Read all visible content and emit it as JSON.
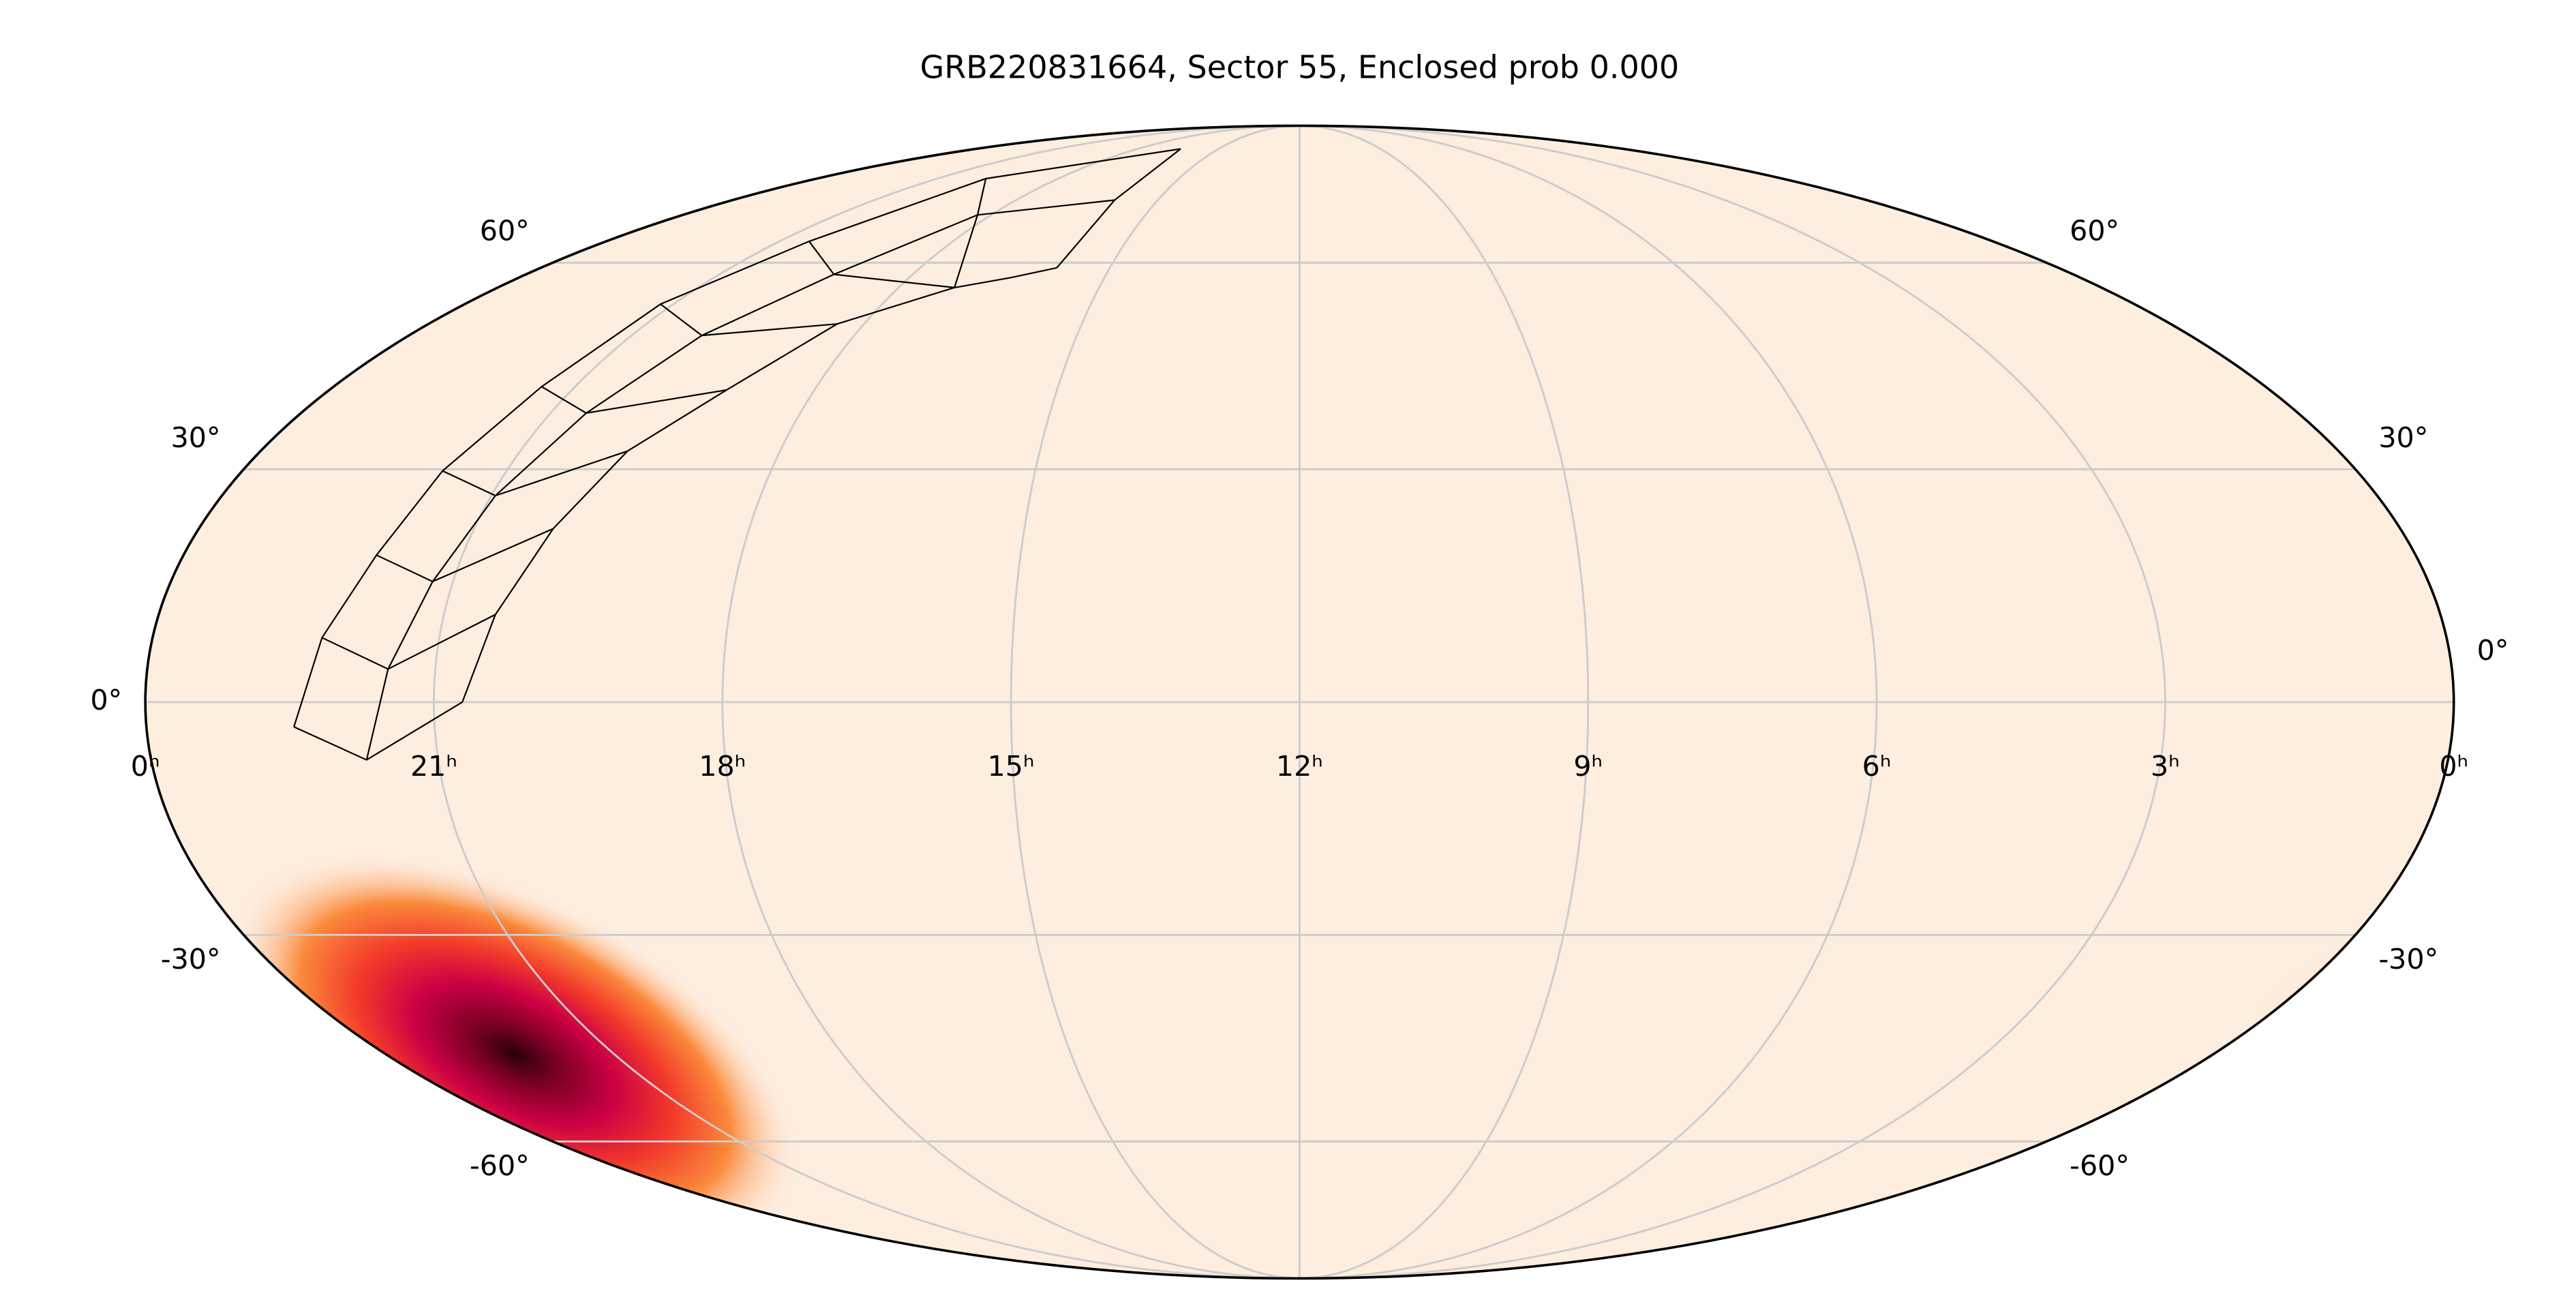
{
  "chart_data": {
    "type": "mollweide",
    "title": "GRB220831664, Sector 55, Enclosed prob 0.000",
    "xlim": [
      24,
      0
    ],
    "xticks": [
      {
        "value": 24,
        "label": "0ʰ"
      },
      {
        "value": 21,
        "label": "21ʰ"
      },
      {
        "value": 18,
        "label": "18ʰ"
      },
      {
        "value": 15,
        "label": "15ʰ"
      },
      {
        "value": 12,
        "label": "12ʰ"
      },
      {
        "value": 9,
        "label": "9ʰ"
      },
      {
        "value": 6,
        "label": "6ʰ"
      },
      {
        "value": 3,
        "label": "3ʰ"
      },
      {
        "value": 0,
        "label": "0ʰ"
      }
    ],
    "ylim": [
      -90,
      90
    ],
    "yticks": [
      {
        "value": -60,
        "label": "-60°"
      },
      {
        "value": -30,
        "label": "-30°"
      },
      {
        "value": 0,
        "label": "0°"
      },
      {
        "value": 30,
        "label": "30°"
      },
      {
        "value": 60,
        "label": "60°"
      }
    ],
    "grid": true
  }
}
